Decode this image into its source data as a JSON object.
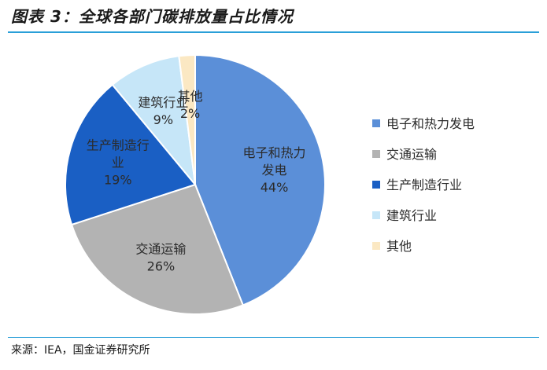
{
  "header": {
    "title": "图表 3：全球各部门碳排放量占比情况"
  },
  "footer": {
    "source": "来源：IEA，国金证券研究所"
  },
  "chart_data": {
    "type": "pie",
    "title": "图表 3：全球各部门碳排放量占比情况",
    "legend_position": "right",
    "slices": [
      {
        "name": "电子和热力发电",
        "label_lines": [
          "电子和热力",
          "发电"
        ],
        "value": 44,
        "value_label": "44%",
        "color": "#5b8fd8"
      },
      {
        "name": "交通运输",
        "label_lines": [
          "交通运输"
        ],
        "value": 26,
        "value_label": "26%",
        "color": "#b3b3b3"
      },
      {
        "name": "生产制造行业",
        "label_lines": [
          "生产制造行",
          "业"
        ],
        "value": 19,
        "value_label": "19%",
        "color": "#1a5fc4"
      },
      {
        "name": "建筑行业",
        "label_lines": [
          "建筑行业"
        ],
        "value": 9,
        "value_label": "9%",
        "color": "#c6e6f8"
      },
      {
        "name": "其他",
        "label_lines": [
          "其他"
        ],
        "value": 2,
        "value_label": "2%",
        "color": "#fbe8c3"
      }
    ]
  }
}
